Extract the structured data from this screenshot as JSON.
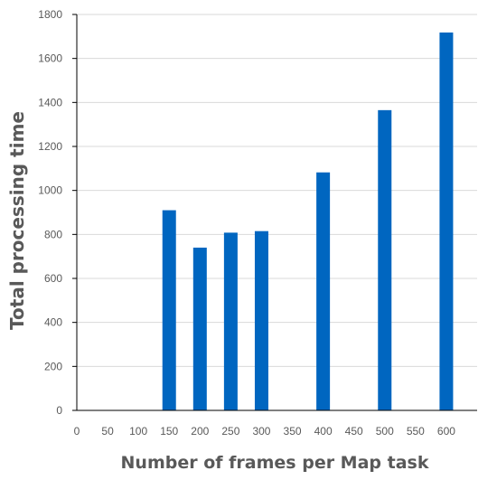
{
  "chart_data": {
    "type": "bar",
    "title": "",
    "xlabel": "Number of frames per Map task",
    "ylabel": "Total processing time",
    "x_ticks": [
      "0",
      "50",
      "100",
      "150",
      "200",
      "250",
      "300",
      "350",
      "400",
      "450",
      "500",
      "550",
      "600"
    ],
    "x_tick_values": [
      0,
      50,
      100,
      150,
      200,
      250,
      300,
      350,
      400,
      450,
      500,
      550,
      600
    ],
    "y_ticks": [
      "0",
      "200",
      "400",
      "600",
      "800",
      "1000",
      "1200",
      "1400",
      "1600",
      "1800"
    ],
    "y_tick_values": [
      0,
      200,
      400,
      600,
      800,
      1000,
      1200,
      1400,
      1600,
      1800
    ],
    "xlim": [
      0,
      650
    ],
    "ylim": [
      0,
      1800
    ],
    "x": [
      150,
      200,
      250,
      300,
      400,
      500,
      600
    ],
    "values": [
      910,
      740,
      808,
      815,
      1082,
      1365,
      1718
    ],
    "bar_color": "#0066C0",
    "grid": "horizontal",
    "legend": "none"
  }
}
